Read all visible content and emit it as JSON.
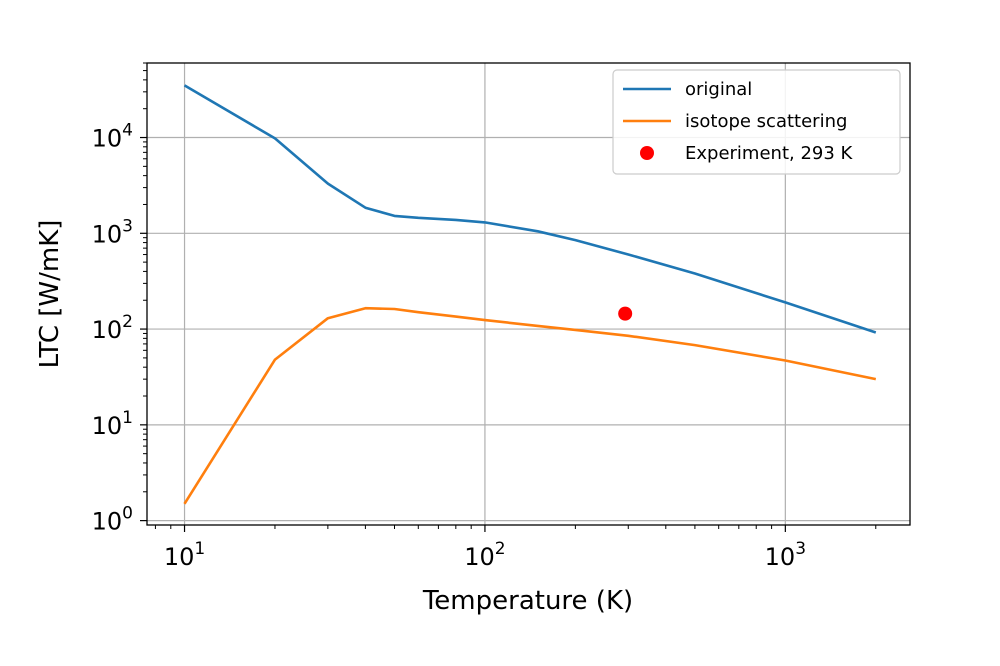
{
  "chart_data": {
    "type": "line",
    "xlabel": "Temperature (K)",
    "ylabel": "LTC [W/mK]",
    "xscale": "log",
    "yscale": "log",
    "xlim": [
      7.5,
      2600
    ],
    "ylim": [
      0.9,
      60000
    ],
    "grid": true,
    "legend_position": "top-right",
    "xticks": [
      {
        "value": 10,
        "base": "10",
        "exp": "1"
      },
      {
        "value": 100,
        "base": "10",
        "exp": "2"
      },
      {
        "value": 1000,
        "base": "10",
        "exp": "3"
      }
    ],
    "yticks": [
      {
        "value": 1,
        "base": "10",
        "exp": "0"
      },
      {
        "value": 10,
        "base": "10",
        "exp": "1"
      },
      {
        "value": 100,
        "base": "10",
        "exp": "2"
      },
      {
        "value": 1000,
        "base": "10",
        "exp": "3"
      },
      {
        "value": 10000,
        "base": "10",
        "exp": "4"
      }
    ],
    "series": [
      {
        "name": "original",
        "color": "#1f77b4",
        "kind": "line",
        "x": [
          10,
          20,
          30,
          40,
          50,
          60,
          80,
          100,
          150,
          200,
          300,
          500,
          1000,
          2000
        ],
        "y": [
          35000,
          9800,
          3300,
          1850,
          1520,
          1450,
          1380,
          1300,
          1050,
          850,
          600,
          380,
          190,
          92
        ]
      },
      {
        "name": "isotope scattering",
        "color": "#ff7f0e",
        "kind": "line",
        "x": [
          10,
          20,
          30,
          40,
          50,
          60,
          80,
          100,
          150,
          200,
          300,
          500,
          1000,
          2000
        ],
        "y": [
          1.5,
          48,
          130,
          165,
          162,
          150,
          135,
          124,
          108,
          98,
          85,
          68,
          47,
          30
        ]
      },
      {
        "name": "Experiment, 293 K",
        "color": "#ff0000",
        "kind": "scatter",
        "x": [
          293
        ],
        "y": [
          145
        ]
      }
    ]
  }
}
